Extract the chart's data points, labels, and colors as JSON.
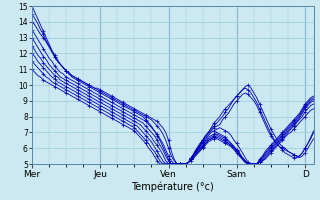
{
  "xlabel": "Température (°c)",
  "ylim": [
    5,
    15
  ],
  "yticks": [
    5,
    6,
    7,
    8,
    9,
    10,
    11,
    12,
    13,
    14,
    15
  ],
  "x_day_labels": [
    "Mer",
    "Jeu",
    "Ven",
    "Sam",
    "D"
  ],
  "x_day_positions": [
    0,
    24,
    48,
    72,
    96
  ],
  "bg_color": "#cce8f0",
  "grid_color": "#99ccdd",
  "line_color": "#0000bb",
  "n_hours": 100,
  "series": [
    [
      14.0,
      13.8,
      13.5,
      13.2,
      13.0,
      12.7,
      12.4,
      12.1,
      11.8,
      11.5,
      11.3,
      11.1,
      10.9,
      10.8,
      10.6,
      10.5,
      10.4,
      10.3,
      10.2,
      10.1,
      10.0,
      9.9,
      9.8,
      9.8,
      9.7,
      9.6,
      9.5,
      9.4,
      9.3,
      9.2,
      9.1,
      9.0,
      8.9,
      8.8,
      8.7,
      8.6,
      8.5,
      8.4,
      8.3,
      8.2,
      8.1,
      8.0,
      7.9,
      7.8,
      7.7,
      7.5,
      7.3,
      7.0,
      6.5,
      5.8,
      5.3,
      5.0,
      5.0,
      5.0,
      5.0,
      5.1,
      5.2,
      5.4,
      5.6,
      5.8,
      6.0,
      6.2,
      6.4,
      6.5,
      6.6,
      6.6,
      6.5,
      6.4,
      6.3,
      6.2,
      6.1,
      6.0,
      5.8,
      5.6,
      5.3,
      5.1,
      5.0,
      5.0,
      5.0,
      5.0,
      5.1,
      5.2,
      5.3,
      5.5,
      5.7,
      5.9,
      6.1,
      6.3,
      6.5,
      6.7,
      6.9,
      7.0,
      7.2,
      7.4,
      7.6,
      7.8,
      8.0,
      8.2,
      8.4,
      8.5
    ],
    [
      14.5,
      14.2,
      13.9,
      13.5,
      13.2,
      12.8,
      12.5,
      12.1,
      11.8,
      11.5,
      11.3,
      11.1,
      10.9,
      10.7,
      10.6,
      10.5,
      10.4,
      10.3,
      10.2,
      10.1,
      10.0,
      9.9,
      9.8,
      9.7,
      9.6,
      9.5,
      9.4,
      9.3,
      9.2,
      9.1,
      9.0,
      8.9,
      8.8,
      8.7,
      8.6,
      8.5,
      8.4,
      8.3,
      8.2,
      8.1,
      8.0,
      7.9,
      7.8,
      7.6,
      7.4,
      7.2,
      6.9,
      6.5,
      6.0,
      5.5,
      5.2,
      5.0,
      5.0,
      5.0,
      5.0,
      5.1,
      5.3,
      5.5,
      5.7,
      5.9,
      6.1,
      6.3,
      6.5,
      6.6,
      6.7,
      6.7,
      6.6,
      6.5,
      6.4,
      6.3,
      6.1,
      5.9,
      5.7,
      5.5,
      5.3,
      5.1,
      5.0,
      5.0,
      5.0,
      5.0,
      5.1,
      5.2,
      5.4,
      5.6,
      5.8,
      6.0,
      6.2,
      6.4,
      6.6,
      6.8,
      7.0,
      7.2,
      7.4,
      7.6,
      7.8,
      8.0,
      8.3,
      8.5,
      8.7,
      8.8
    ],
    [
      13.5,
      13.2,
      12.9,
      12.6,
      12.3,
      12.0,
      11.7,
      11.5,
      11.2,
      11.0,
      10.8,
      10.7,
      10.5,
      10.4,
      10.3,
      10.2,
      10.1,
      10.0,
      9.9,
      9.8,
      9.7,
      9.6,
      9.5,
      9.4,
      9.3,
      9.2,
      9.1,
      9.0,
      8.9,
      8.8,
      8.7,
      8.6,
      8.5,
      8.4,
      8.3,
      8.2,
      8.1,
      8.0,
      7.9,
      7.8,
      7.7,
      7.5,
      7.3,
      7.1,
      6.9,
      6.6,
      6.3,
      5.9,
      5.5,
      5.2,
      5.0,
      5.0,
      5.0,
      5.0,
      5.0,
      5.1,
      5.3,
      5.5,
      5.7,
      5.9,
      6.1,
      6.3,
      6.5,
      6.6,
      6.7,
      6.8,
      6.7,
      6.6,
      6.5,
      6.3,
      6.2,
      6.0,
      5.8,
      5.5,
      5.3,
      5.1,
      5.0,
      5.0,
      5.0,
      5.0,
      5.1,
      5.3,
      5.5,
      5.7,
      5.9,
      6.1,
      6.3,
      6.5,
      6.7,
      6.9,
      7.1,
      7.3,
      7.5,
      7.7,
      7.9,
      8.2,
      8.5,
      8.7,
      8.9,
      9.0
    ],
    [
      13.0,
      12.7,
      12.4,
      12.1,
      11.8,
      11.6,
      11.3,
      11.1,
      10.9,
      10.7,
      10.5,
      10.4,
      10.3,
      10.2,
      10.1,
      10.0,
      9.9,
      9.8,
      9.7,
      9.6,
      9.5,
      9.4,
      9.3,
      9.2,
      9.1,
      9.0,
      8.9,
      8.8,
      8.7,
      8.6,
      8.5,
      8.4,
      8.3,
      8.2,
      8.1,
      8.0,
      7.9,
      7.8,
      7.7,
      7.6,
      7.4,
      7.2,
      7.0,
      6.8,
      6.5,
      6.2,
      5.9,
      5.5,
      5.2,
      5.0,
      5.0,
      5.0,
      5.0,
      5.0,
      5.0,
      5.1,
      5.3,
      5.5,
      5.8,
      6.0,
      6.2,
      6.4,
      6.6,
      6.7,
      6.8,
      6.9,
      6.8,
      6.7,
      6.6,
      6.4,
      6.3,
      6.1,
      5.9,
      5.6,
      5.4,
      5.2,
      5.0,
      5.0,
      5.0,
      5.0,
      5.2,
      5.4,
      5.6,
      5.8,
      6.0,
      6.2,
      6.4,
      6.6,
      6.8,
      7.0,
      7.2,
      7.4,
      7.6,
      7.8,
      8.0,
      8.3,
      8.6,
      8.8,
      9.0,
      9.1
    ],
    [
      12.5,
      12.2,
      11.9,
      11.7,
      11.4,
      11.2,
      11.0,
      10.8,
      10.6,
      10.5,
      10.3,
      10.2,
      10.1,
      10.0,
      9.9,
      9.8,
      9.7,
      9.6,
      9.5,
      9.4,
      9.3,
      9.2,
      9.1,
      9.0,
      8.9,
      8.8,
      8.7,
      8.6,
      8.5,
      8.4,
      8.3,
      8.2,
      8.1,
      8.0,
      7.9,
      7.8,
      7.7,
      7.6,
      7.5,
      7.3,
      7.1,
      6.9,
      6.7,
      6.4,
      6.2,
      5.9,
      5.6,
      5.2,
      5.0,
      5.0,
      5.0,
      5.0,
      5.0,
      5.0,
      5.0,
      5.1,
      5.3,
      5.6,
      5.8,
      6.1,
      6.3,
      6.5,
      6.7,
      6.8,
      6.9,
      7.0,
      6.9,
      6.8,
      6.7,
      6.5,
      6.3,
      6.1,
      5.9,
      5.7,
      5.4,
      5.2,
      5.0,
      5.0,
      5.0,
      5.0,
      5.2,
      5.4,
      5.7,
      5.9,
      6.1,
      6.3,
      6.5,
      6.7,
      6.9,
      7.1,
      7.3,
      7.5,
      7.7,
      7.9,
      8.1,
      8.4,
      8.7,
      8.9,
      9.1,
      9.2
    ],
    [
      12.0,
      11.8,
      11.5,
      11.3,
      11.1,
      10.9,
      10.7,
      10.5,
      10.4,
      10.2,
      10.1,
      10.0,
      9.9,
      9.8,
      9.7,
      9.6,
      9.5,
      9.4,
      9.3,
      9.2,
      9.1,
      9.0,
      8.9,
      8.8,
      8.7,
      8.6,
      8.5,
      8.4,
      8.3,
      8.2,
      8.1,
      8.0,
      7.9,
      7.8,
      7.7,
      7.6,
      7.5,
      7.4,
      7.2,
      7.0,
      6.8,
      6.6,
      6.4,
      6.1,
      5.8,
      5.5,
      5.2,
      5.0,
      5.0,
      5.0,
      5.0,
      5.0,
      5.0,
      5.0,
      5.0,
      5.1,
      5.4,
      5.6,
      5.9,
      6.1,
      6.4,
      6.6,
      6.8,
      7.0,
      7.1,
      7.2,
      7.3,
      7.2,
      7.1,
      7.0,
      6.8,
      6.5,
      6.3,
      6.0,
      5.7,
      5.4,
      5.1,
      5.0,
      5.0,
      5.0,
      5.3,
      5.5,
      5.8,
      6.0,
      6.2,
      6.4,
      6.6,
      6.8,
      7.0,
      7.2,
      7.4,
      7.6,
      7.8,
      8.0,
      8.2,
      8.5,
      8.8,
      9.0,
      9.2,
      9.3
    ],
    [
      11.5,
      11.3,
      11.1,
      10.9,
      10.7,
      10.5,
      10.4,
      10.2,
      10.1,
      10.0,
      9.9,
      9.8,
      9.7,
      9.6,
      9.5,
      9.4,
      9.3,
      9.2,
      9.1,
      9.0,
      8.9,
      8.8,
      8.7,
      8.6,
      8.5,
      8.4,
      8.3,
      8.2,
      8.1,
      8.0,
      7.9,
      7.8,
      7.7,
      7.6,
      7.5,
      7.4,
      7.3,
      7.1,
      6.9,
      6.7,
      6.5,
      6.3,
      6.0,
      5.8,
      5.5,
      5.2,
      5.0,
      5.0,
      5.0,
      5.0,
      5.0,
      5.0,
      5.0,
      5.0,
      5.0,
      5.1,
      5.4,
      5.7,
      6.0,
      6.2,
      6.5,
      6.7,
      6.9,
      7.1,
      7.3,
      7.4,
      7.5,
      7.8,
      8.0,
      8.2,
      8.5,
      8.8,
      9.0,
      9.2,
      9.4,
      9.5,
      9.4,
      9.2,
      9.0,
      8.7,
      8.3,
      7.9,
      7.5,
      7.1,
      6.8,
      6.5,
      6.3,
      6.1,
      6.0,
      5.9,
      5.8,
      5.7,
      5.6,
      5.5,
      5.4,
      5.5,
      5.7,
      6.0,
      6.3,
      6.6
    ],
    [
      11.0,
      10.8,
      10.6,
      10.5,
      10.3,
      10.2,
      10.1,
      10.0,
      9.9,
      9.8,
      9.7,
      9.6,
      9.5,
      9.4,
      9.3,
      9.2,
      9.1,
      9.0,
      8.9,
      8.8,
      8.7,
      8.6,
      8.5,
      8.4,
      8.3,
      8.2,
      8.1,
      8.0,
      7.9,
      7.8,
      7.7,
      7.6,
      7.5,
      7.4,
      7.3,
      7.2,
      7.1,
      6.9,
      6.7,
      6.5,
      6.3,
      6.0,
      5.8,
      5.5,
      5.2,
      5.0,
      5.0,
      5.0,
      5.0,
      5.0,
      5.0,
      5.0,
      5.0,
      5.0,
      5.0,
      5.1,
      5.4,
      5.7,
      6.0,
      6.3,
      6.5,
      6.8,
      7.0,
      7.2,
      7.4,
      7.6,
      7.8,
      8.0,
      8.3,
      8.5,
      8.8,
      9.1,
      9.3,
      9.5,
      9.7,
      9.8,
      9.7,
      9.5,
      9.2,
      8.9,
      8.5,
      8.1,
      7.7,
      7.3,
      6.9,
      6.6,
      6.3,
      6.1,
      5.9,
      5.7,
      5.6,
      5.5,
      5.4,
      5.4,
      5.5,
      5.7,
      6.0,
      6.3,
      6.6,
      7.0
    ],
    [
      15.0,
      14.6,
      14.2,
      13.8,
      13.4,
      13.0,
      12.6,
      12.2,
      11.9,
      11.6,
      11.3,
      11.1,
      10.9,
      10.7,
      10.5,
      10.4,
      10.3,
      10.2,
      10.1,
      10.0,
      9.9,
      9.8,
      9.7,
      9.6,
      9.5,
      9.4,
      9.3,
      9.2,
      9.1,
      9.0,
      8.9,
      8.8,
      8.7,
      8.6,
      8.5,
      8.4,
      8.3,
      8.2,
      8.1,
      8.0,
      7.8,
      7.6,
      7.4,
      7.1,
      6.8,
      6.5,
      6.1,
      5.7,
      5.3,
      5.0,
      5.0,
      5.0,
      5.0,
      5.0,
      5.0,
      5.1,
      5.3,
      5.6,
      5.9,
      6.2,
      6.5,
      6.8,
      7.0,
      7.3,
      7.6,
      7.8,
      8.0,
      8.3,
      8.5,
      8.7,
      8.9,
      9.1,
      9.3,
      9.5,
      9.7,
      9.9,
      10.0,
      9.8,
      9.5,
      9.2,
      8.8,
      8.4,
      8.0,
      7.6,
      7.2,
      6.9,
      6.6,
      6.3,
      6.1,
      6.0,
      5.8,
      5.7,
      5.6,
      5.5,
      5.5,
      5.7,
      6.0,
      6.3,
      6.7,
      7.1
    ]
  ]
}
